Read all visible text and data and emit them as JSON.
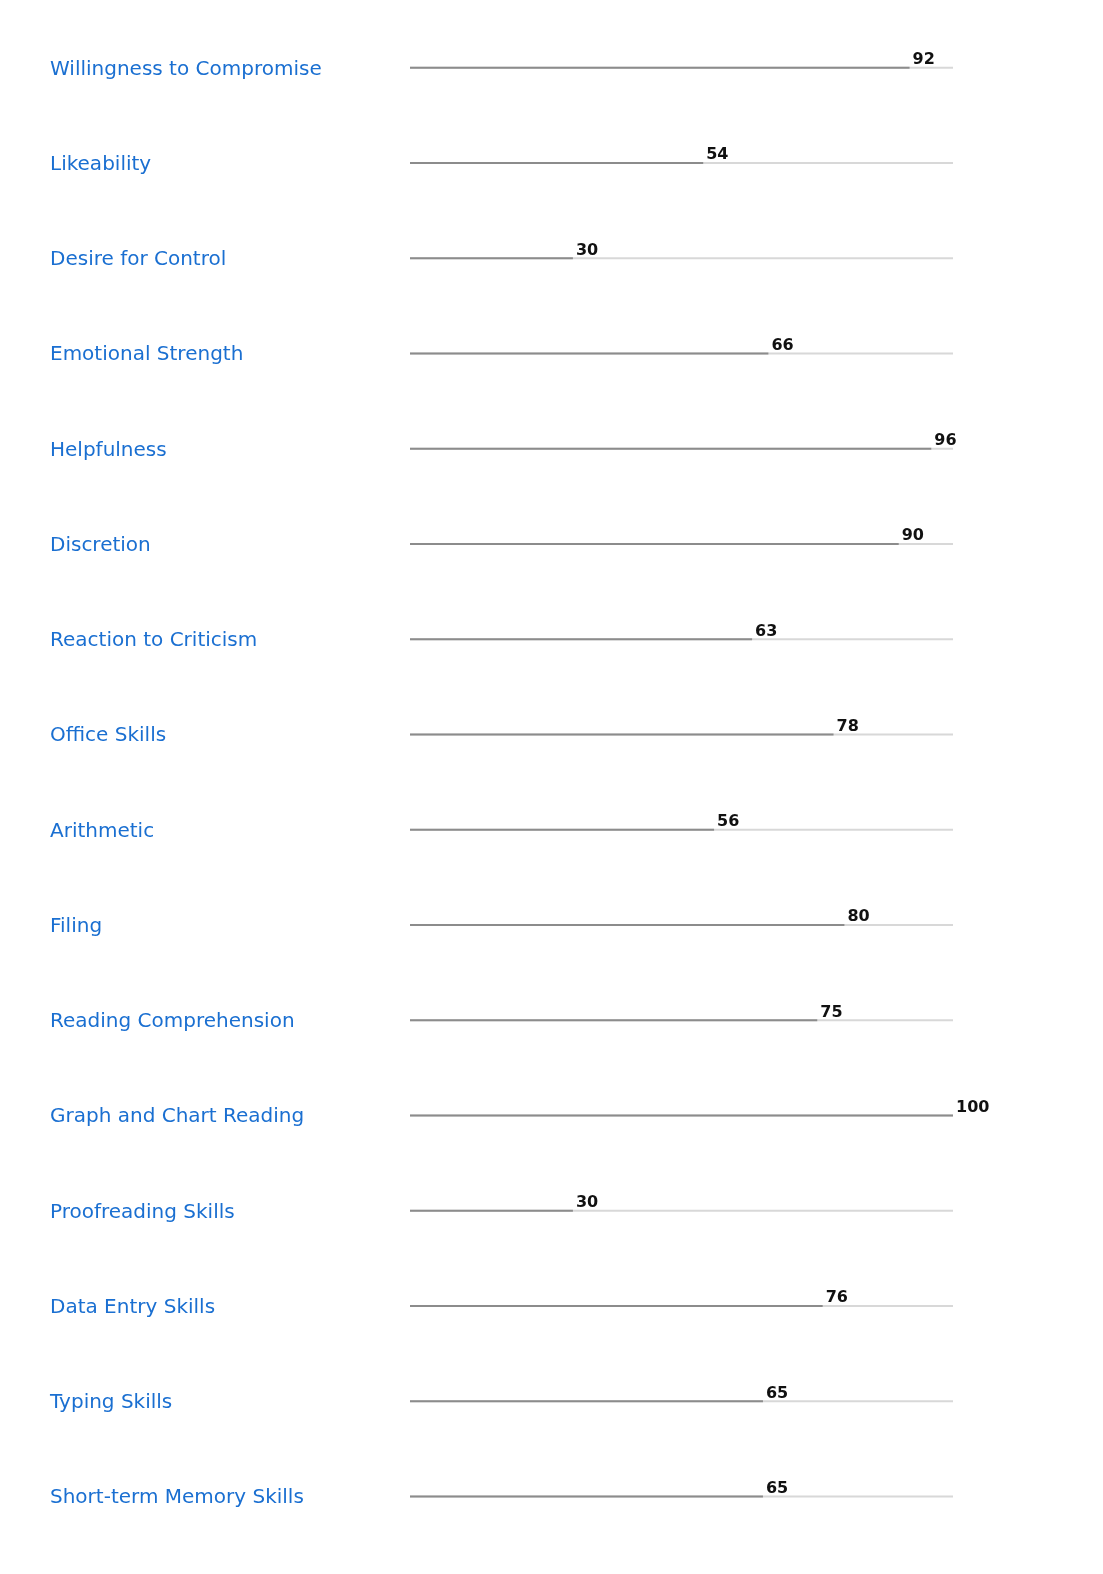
{
  "chart_data": {
    "type": "bar",
    "orientation": "horizontal",
    "data_labels": true,
    "categories": [
      "Willingness to Compromise",
      "Likeability",
      "Desire for Control",
      "Emotional Strength",
      "Helpfulness",
      "Discretion",
      "Reaction to Criticism",
      "Office Skills",
      "Arithmetic",
      "Filing",
      "Reading Comprehension",
      "Graph and Chart Reading",
      "Proofreading Skills",
      "Data Entry Skills",
      "Typing Skills",
      "Short-term Memory Skills"
    ],
    "values": [
      92,
      54,
      30,
      66,
      96,
      90,
      63,
      78,
      56,
      80,
      75,
      100,
      30,
      76,
      65,
      65
    ],
    "color": "#8c8c8c"
  }
}
